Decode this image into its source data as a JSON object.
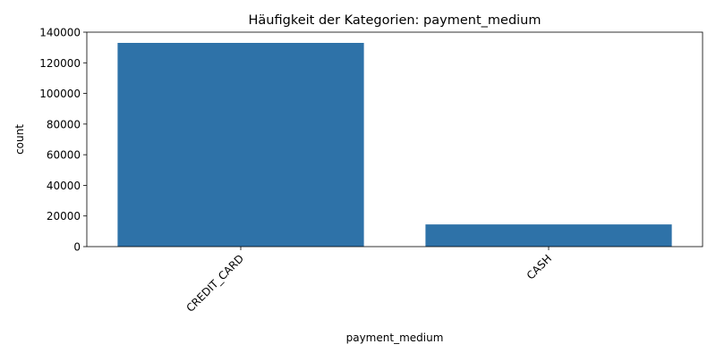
{
  "chart_data": {
    "type": "bar",
    "title": "Häufigkeit der Kategorien: payment_medium",
    "xlabel": "payment_medium",
    "ylabel": "count",
    "categories": [
      "CREDIT_CARD",
      "CASH"
    ],
    "values": [
      133000,
      14500
    ],
    "ylim": [
      0,
      140000
    ],
    "yticks": [
      0,
      20000,
      40000,
      60000,
      80000,
      100000,
      120000,
      140000
    ],
    "ytick_labels": [
      "0",
      "20000",
      "40000",
      "60000",
      "80000",
      "100000",
      "120000",
      "140000"
    ],
    "bar_color": "#2e72a8",
    "grid": false,
    "legend": "none"
  }
}
